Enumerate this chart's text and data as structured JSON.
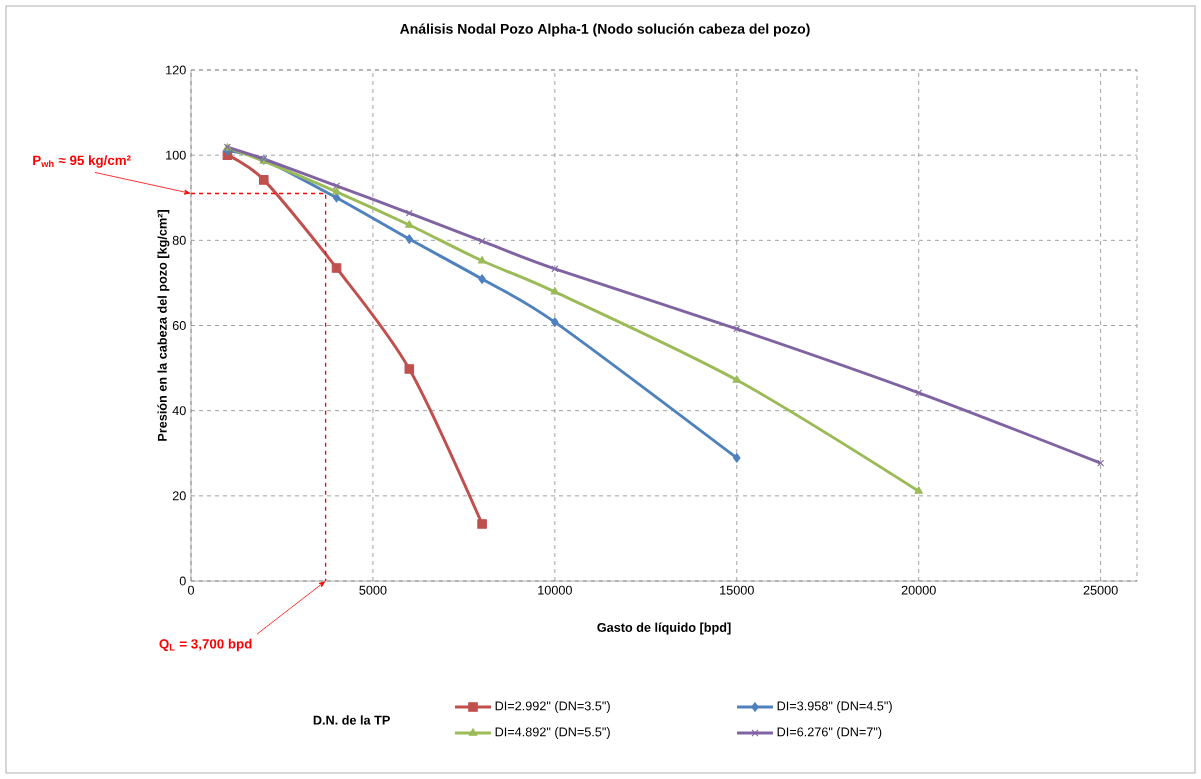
{
  "chart_data": {
    "type": "line",
    "title": "Análisis Nodal Pozo Alpha-1 (Nodo solución cabeza del pozo)",
    "xlabel": "Gasto de líquido  [bpd]",
    "ylabel": "Presión en la cabeza del pozo [kg/cm²]",
    "legend_title": "D.N. de la TP",
    "xlim": [
      0,
      26000
    ],
    "xticks": [
      0,
      5000,
      10000,
      15000,
      20000,
      25000
    ],
    "ylim": [
      0,
      120
    ],
    "yticks": [
      0,
      20,
      40,
      60,
      80,
      100,
      120
    ],
    "grid": true,
    "legend": "bottom",
    "line_style": "solid",
    "series": [
      {
        "name": "DI=2.992\" (DN=3.5\")",
        "color": "#c0504d",
        "marker": "square",
        "x": [
          1000,
          2000,
          4000,
          6000,
          8000
        ],
        "values": [
          100.0,
          94.2,
          73.5,
          49.8,
          13.4
        ]
      },
      {
        "name": "DI=3.958\" (DN=4.5\")",
        "color": "#4f81bd",
        "marker": "diamond",
        "x": [
          1000,
          2000,
          4000,
          6000,
          8000,
          10000,
          15000
        ],
        "values": [
          101.0,
          98.9,
          90.0,
          80.3,
          70.9,
          60.8,
          28.9
        ]
      },
      {
        "name": "DI=4.892\" (DN=5.5\")",
        "color": "#9bbb59",
        "marker": "triangle",
        "x": [
          1000,
          2000,
          4000,
          6000,
          8000,
          10000,
          15000,
          20000
        ],
        "values": [
          101.7,
          98.6,
          91.4,
          83.6,
          75.2,
          67.9,
          47.2,
          21.1
        ]
      },
      {
        "name": "DI=6.276\" (DN=7\")",
        "color": "#8064a2",
        "marker": "cross",
        "x": [
          1000,
          2000,
          4000,
          6000,
          8000,
          10000,
          15000,
          20000,
          25000
        ],
        "values": [
          101.9,
          99.1,
          92.8,
          86.4,
          79.8,
          73.3,
          59.2,
          44.2,
          27.7
        ]
      },
      {
        "color": "#ff0000",
        "marker": "none",
        "line_style": "dashed",
        "x": [
          0,
          3700,
          3700
        ],
        "values": [
          91,
          91,
          0
        ]
      }
    ],
    "annotations": [
      {
        "text": "P$_{wh}$ ≈ 95 kg/cm²",
        "x": 0,
        "y": 91
      },
      {
        "text": "Q$_{L}$ = 3,700 bpd",
        "x": 3700,
        "y": 0
      }
    ]
  }
}
